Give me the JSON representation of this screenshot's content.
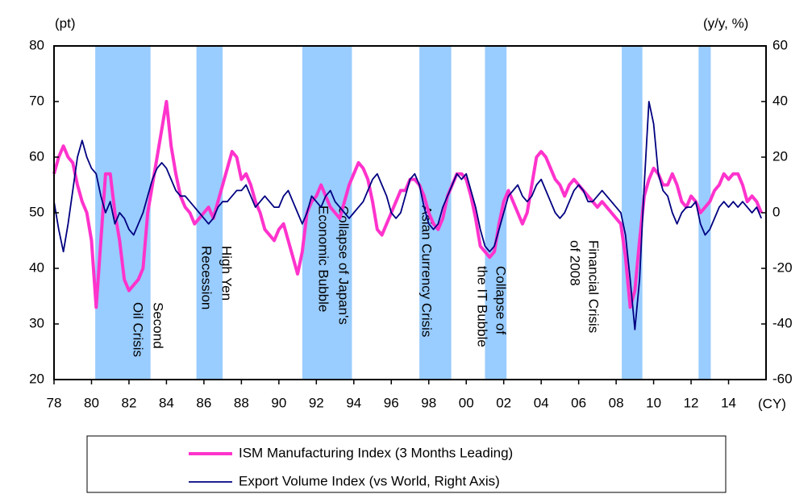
{
  "chart_data": {
    "type": "line",
    "y_label": "(pt)",
    "y2_label": "(y/y,  %)",
    "x_label": "(CY)",
    "xlim": [
      1978,
      2016
    ],
    "xticks": [
      {
        "value": 1978,
        "label": "78"
      },
      {
        "value": 1980,
        "label": "80"
      },
      {
        "value": 1982,
        "label": "82"
      },
      {
        "value": 1984,
        "label": "84"
      },
      {
        "value": 1986,
        "label": "86"
      },
      {
        "value": 1988,
        "label": "88"
      },
      {
        "value": 1990,
        "label": "90"
      },
      {
        "value": 1992,
        "label": "92"
      },
      {
        "value": 1994,
        "label": "94"
      },
      {
        "value": 1996,
        "label": "96"
      },
      {
        "value": 1998,
        "label": "98"
      },
      {
        "value": 2000,
        "label": "00"
      },
      {
        "value": 2002,
        "label": "02"
      },
      {
        "value": 2004,
        "label": "04"
      },
      {
        "value": 2006,
        "label": "06"
      },
      {
        "value": 2008,
        "label": "08"
      },
      {
        "value": 2010,
        "label": "10"
      },
      {
        "value": 2012,
        "label": "12"
      },
      {
        "value": 2014,
        "label": "14"
      }
    ],
    "ylim": [
      20,
      80
    ],
    "yticks": [
      20,
      30,
      40,
      50,
      60,
      70,
      80
    ],
    "y2lim": [
      -60,
      60
    ],
    "y2ticks": [
      -60,
      -40,
      -20,
      0,
      20,
      40,
      60
    ],
    "grid": false,
    "band_color": "#99ccff",
    "bands": [
      {
        "start": 1980.2,
        "end": 1983.15
      },
      {
        "start": 1985.6,
        "end": 1987.0
      },
      {
        "start": 1991.25,
        "end": 1993.9
      },
      {
        "start": 1997.5,
        "end": 1999.2
      },
      {
        "start": 2001.0,
        "end": 2002.15
      },
      {
        "start": 2008.3,
        "end": 2009.4
      },
      {
        "start": 2012.4,
        "end": 2013.05
      }
    ],
    "annotations": [
      {
        "lines": [
          "Second",
          "Oil Crisis"
        ]
      },
      {
        "lines": [
          "High Yen",
          "Recession"
        ]
      },
      {
        "lines": [
          "Collapse of Japan's",
          "Economic Bubble"
        ]
      },
      {
        "lines": [
          "Asian Currency Crisis"
        ]
      },
      {
        "lines": [
          "Collapse of",
          "the IT Bubble"
        ]
      },
      {
        "lines": [
          "Financial Crisis",
          "of 2008"
        ]
      }
    ],
    "x": [
      1978,
      1978.25,
      1978.5,
      1978.75,
      1979,
      1979.25,
      1979.5,
      1979.75,
      1980,
      1980.25,
      1980.5,
      1980.75,
      1981,
      1981.25,
      1981.5,
      1981.75,
      1982,
      1982.25,
      1982.5,
      1982.75,
      1983,
      1983.25,
      1983.5,
      1983.75,
      1984,
      1984.25,
      1984.5,
      1984.75,
      1985,
      1985.25,
      1985.5,
      1985.75,
      1986,
      1986.25,
      1986.5,
      1986.75,
      1987,
      1987.25,
      1987.5,
      1987.75,
      1988,
      1988.25,
      1988.5,
      1988.75,
      1989,
      1989.25,
      1989.5,
      1989.75,
      1990,
      1990.25,
      1990.5,
      1990.75,
      1991,
      1991.25,
      1991.5,
      1991.75,
      1992,
      1992.25,
      1992.5,
      1992.75,
      1993,
      1993.25,
      1993.5,
      1993.75,
      1994,
      1994.25,
      1994.5,
      1994.75,
      1995,
      1995.25,
      1995.5,
      1995.75,
      1996,
      1996.25,
      1996.5,
      1996.75,
      1997,
      1997.25,
      1997.5,
      1997.75,
      1998,
      1998.25,
      1998.5,
      1998.75,
      1999,
      1999.25,
      1999.5,
      1999.75,
      2000,
      2000.25,
      2000.5,
      2000.75,
      2001,
      2001.25,
      2001.5,
      2001.75,
      2002,
      2002.25,
      2002.5,
      2002.75,
      2003,
      2003.25,
      2003.5,
      2003.75,
      2004,
      2004.25,
      2004.5,
      2004.75,
      2005,
      2005.25,
      2005.5,
      2005.75,
      2006,
      2006.25,
      2006.5,
      2006.75,
      2007,
      2007.25,
      2007.5,
      2007.75,
      2008,
      2008.25,
      2008.5,
      2008.75,
      2009,
      2009.25,
      2009.5,
      2009.75,
      2010,
      2010.25,
      2010.5,
      2010.75,
      2011,
      2011.25,
      2011.5,
      2011.75,
      2012,
      2012.25,
      2012.5,
      2012.75,
      2013,
      2013.25,
      2013.5,
      2013.75,
      2014,
      2014.25,
      2014.5,
      2014.75,
      2015,
      2015.25,
      2015.5,
      2015.75
    ],
    "series": [
      {
        "name": "ISM Manufacturing Index (3 Months Leading)",
        "color": "#ff33cc",
        "width": 4,
        "values": [
          57,
          60,
          62,
          60,
          59,
          55,
          52,
          50,
          45,
          33,
          45,
          57,
          57,
          50,
          45,
          38,
          36,
          37,
          38,
          40,
          50,
          55,
          60,
          65,
          70,
          62,
          57,
          53,
          51,
          50,
          48,
          49,
          50,
          51,
          49,
          52,
          55,
          58,
          61,
          60,
          56,
          57,
          55,
          52,
          50,
          47,
          46,
          45,
          47,
          48,
          45,
          42,
          39,
          43,
          50,
          52,
          53,
          55,
          53,
          51,
          50,
          49,
          52,
          55,
          57,
          59,
          58,
          56,
          52,
          47,
          46,
          48,
          50,
          52,
          54,
          54,
          56,
          56,
          55,
          53,
          50,
          48,
          47,
          49,
          53,
          55,
          57,
          57,
          56,
          53,
          49,
          44,
          43,
          42,
          43,
          48,
          52,
          54,
          52,
          50,
          48,
          50,
          55,
          60,
          61,
          60,
          58,
          56,
          55,
          53,
          55,
          56,
          55,
          54,
          53,
          52,
          51,
          52,
          51,
          50,
          49,
          48,
          42,
          33,
          36,
          45,
          53,
          56,
          58,
          57,
          55,
          55,
          57,
          55,
          52,
          51,
          53,
          52,
          50,
          51,
          52,
          54,
          55,
          57,
          56,
          57,
          57,
          55,
          52,
          53,
          52,
          50
        ]
      },
      {
        "name": "Export Volume Index (vs World, Right Axis)",
        "color": "#000080",
        "width": 1.8,
        "axis": "y2",
        "values": [
          4,
          -6,
          -14,
          -4,
          8,
          20,
          26,
          20,
          16,
          14,
          6,
          0,
          4,
          -4,
          0,
          -2,
          -6,
          -8,
          -4,
          0,
          6,
          12,
          16,
          18,
          16,
          12,
          8,
          6,
          6,
          4,
          2,
          0,
          -2,
          -4,
          -2,
          2,
          4,
          4,
          6,
          8,
          8,
          10,
          6,
          2,
          4,
          6,
          4,
          2,
          2,
          6,
          8,
          4,
          0,
          -4,
          0,
          6,
          4,
          2,
          6,
          8,
          4,
          2,
          0,
          -2,
          0,
          2,
          4,
          8,
          12,
          14,
          10,
          6,
          0,
          -2,
          0,
          6,
          12,
          14,
          10,
          2,
          -4,
          -6,
          -4,
          2,
          6,
          10,
          14,
          12,
          14,
          8,
          2,
          -6,
          -12,
          -14,
          -12,
          -6,
          0,
          6,
          8,
          10,
          6,
          4,
          6,
          10,
          12,
          8,
          4,
          0,
          -2,
          0,
          4,
          8,
          10,
          8,
          4,
          4,
          6,
          8,
          6,
          4,
          2,
          0,
          -8,
          -24,
          -42,
          -24,
          10,
          40,
          32,
          14,
          8,
          6,
          0,
          -4,
          0,
          2,
          2,
          4,
          -4,
          -8,
          -6,
          -2,
          2,
          4,
          2,
          4,
          2,
          4,
          2,
          0,
          2,
          -2
        ]
      }
    ],
    "legend": "bottom"
  }
}
